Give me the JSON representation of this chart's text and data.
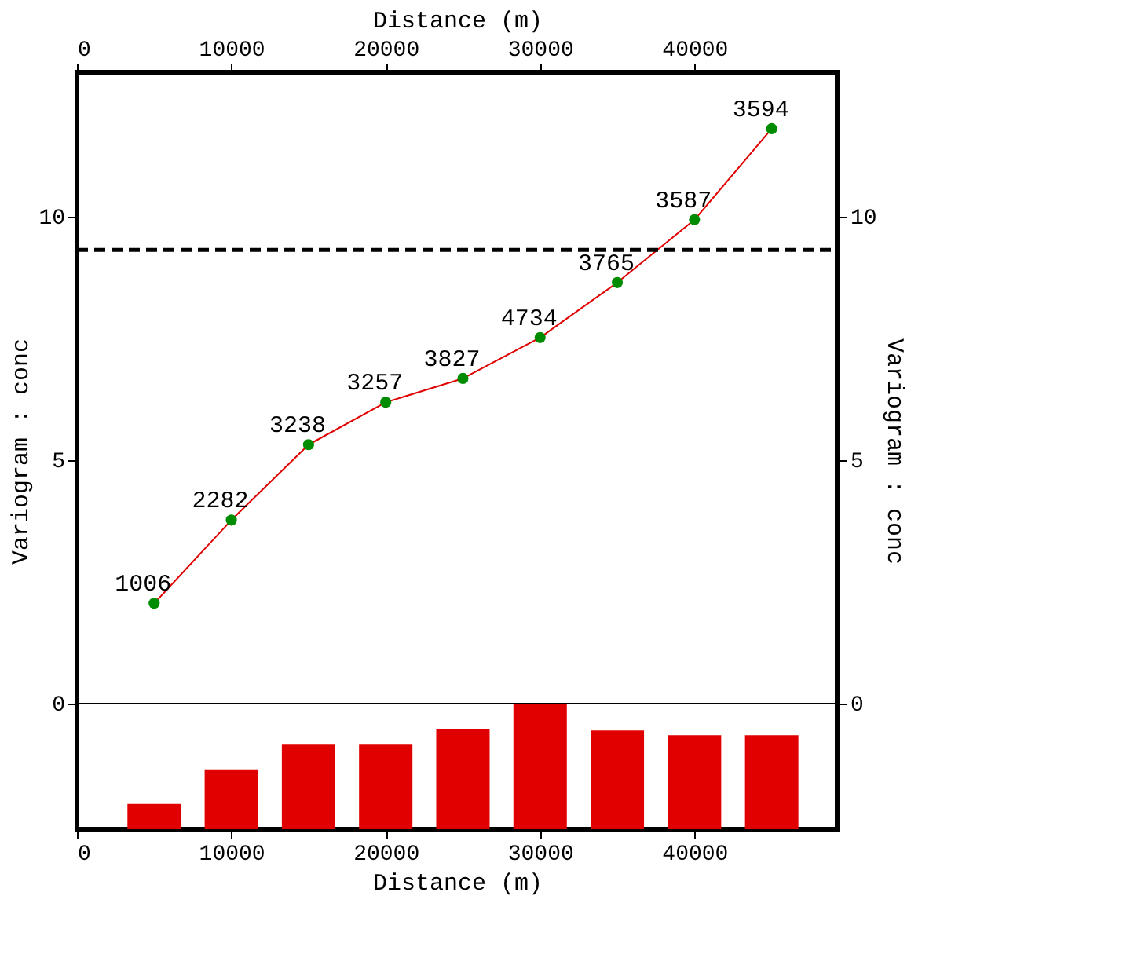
{
  "chart_data": {
    "type": "line",
    "xlabel": "Distance (m)",
    "x2label": "Distance (m)",
    "ylabel": "Variogram : conc",
    "y2label": "Variogram : conc",
    "xlim": [
      0,
      49240
    ],
    "xticks": [
      0,
      10000,
      20000,
      30000,
      40000
    ],
    "x2lim": [
      0,
      49240
    ],
    "x2ticks": [
      0,
      10000,
      20000,
      30000,
      40000
    ],
    "ylim": [
      -2.58,
      12.97
    ],
    "yticks": [
      0,
      5,
      10
    ],
    "y2lim": [
      -2.58,
      12.97
    ],
    "y2ticks": [
      0,
      5,
      10
    ],
    "grid": false,
    "series": [
      {
        "type": "bar",
        "color": "#e00000",
        "x": [
          5000,
          10000,
          15000,
          20000,
          25000,
          30000,
          35000,
          40000,
          45000
        ],
        "base": [
          -2.58,
          -2.58,
          -2.58,
          -2.58,
          -2.58,
          -2.58,
          -2.58,
          -2.58,
          -2.58
        ],
        "values": [
          0.52,
          1.23,
          1.74,
          1.74,
          2.06,
          2.58,
          2.03,
          1.93,
          1.93
        ]
      },
      {
        "color": "#e00000",
        "marker": "none",
        "x": [
          5000,
          10000,
          15000,
          20000,
          25000,
          30000,
          35000,
          40000,
          45000
        ],
        "values": [
          2.06,
          3.77,
          5.32,
          6.19,
          6.68,
          7.52,
          8.65,
          9.94,
          11.81
        ]
      },
      {
        "type": "scatter",
        "color": "#008c00",
        "marker": "circle",
        "x": [
          5000,
          10000,
          15000,
          20000,
          25000,
          30000,
          35000,
          40000,
          45000
        ],
        "values": [
          2.06,
          3.77,
          5.32,
          6.19,
          6.68,
          7.52,
          8.65,
          9.94,
          11.81
        ]
      }
    ],
    "annotations": [
      {
        "text": "1006",
        "x": 5000,
        "y": 2.06
      },
      {
        "text": "2282",
        "x": 10000,
        "y": 3.77
      },
      {
        "text": "3238",
        "x": 15000,
        "y": 5.32
      },
      {
        "text": "3257",
        "x": 20000,
        "y": 6.19
      },
      {
        "text": "3827",
        "x": 25000,
        "y": 6.68
      },
      {
        "text": "4734",
        "x": 30000,
        "y": 7.52
      },
      {
        "text": "3765",
        "x": 35000,
        "y": 8.65
      },
      {
        "text": "3587",
        "x": 40000,
        "y": 9.94
      },
      {
        "text": "3594",
        "x": 45000,
        "y": 11.81
      }
    ],
    "ref_lines": [
      {
        "axis": "y",
        "value": 0,
        "color": "#000000",
        "line_style": "solid"
      },
      {
        "axis": "y",
        "value": 9.32,
        "color": "#000000",
        "line_style": "dashed"
      }
    ]
  }
}
